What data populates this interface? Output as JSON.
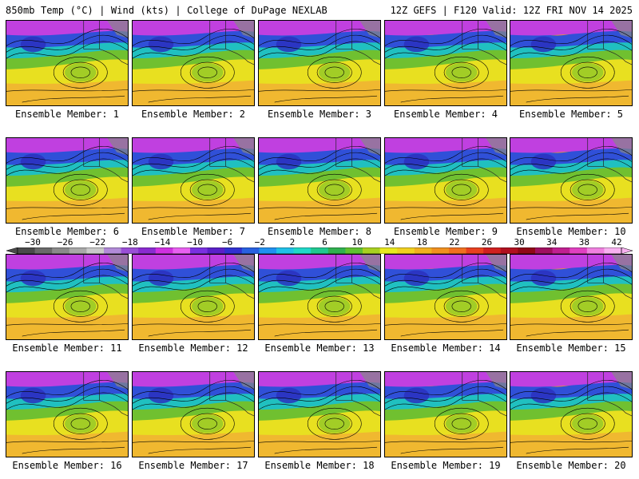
{
  "header": {
    "left": "850mb Temp (°C) | Wind (kts) | College of DuPage NEXLAB",
    "right": "12Z GEFS | F120 Valid: 12Z FRI NOV 14 2025"
  },
  "colorbar": {
    "labels": [
      "−30",
      "−26",
      "−22",
      "−18",
      "−14",
      "−10",
      "−6",
      "−2",
      "2",
      "6",
      "10",
      "14",
      "18",
      "22",
      "26",
      "30",
      "34",
      "38",
      "42"
    ],
    "colors": [
      "#4a4a4a",
      "#6a6a6a",
      "#8a8a8a",
      "#a8a8a8",
      "#c9c9c9",
      "#b28ad8",
      "#9a4fd6",
      "#8a2bd0",
      "#d030e0",
      "#e860f0",
      "#7a30e0",
      "#5a20c8",
      "#3030d0",
      "#2860e0",
      "#2090f0",
      "#20c0e8",
      "#20d8c8",
      "#20c890",
      "#30b050",
      "#60c030",
      "#a8d020",
      "#e8e820",
      "#f0d020",
      "#f0b020",
      "#f09020",
      "#f07020",
      "#e84020",
      "#d02020",
      "#b01020",
      "#900818",
      "#a01060",
      "#c02090",
      "#e040c0",
      "#f080e0",
      "#f8b0f0"
    ]
  },
  "panels": [
    {
      "label": "Ensemble Member: 1"
    },
    {
      "label": "Ensemble Member: 2"
    },
    {
      "label": "Ensemble Member: 3"
    },
    {
      "label": "Ensemble Member: 4"
    },
    {
      "label": "Ensemble Member: 5"
    },
    {
      "label": "Ensemble Member: 6"
    },
    {
      "label": "Ensemble Member: 7"
    },
    {
      "label": "Ensemble Member: 8"
    },
    {
      "label": "Ensemble Member: 9"
    },
    {
      "label": "Ensemble Member: 10"
    },
    {
      "label": "Ensemble Member: 11"
    },
    {
      "label": "Ensemble Member: 12"
    },
    {
      "label": "Ensemble Member: 13"
    },
    {
      "label": "Ensemble Member: 14"
    },
    {
      "label": "Ensemble Member: 15"
    },
    {
      "label": "Ensemble Member: 16"
    },
    {
      "label": "Ensemble Member: 17"
    },
    {
      "label": "Ensemble Member: 18"
    },
    {
      "label": "Ensemble Member: 19"
    },
    {
      "label": "Ensemble Member: 20"
    }
  ]
}
